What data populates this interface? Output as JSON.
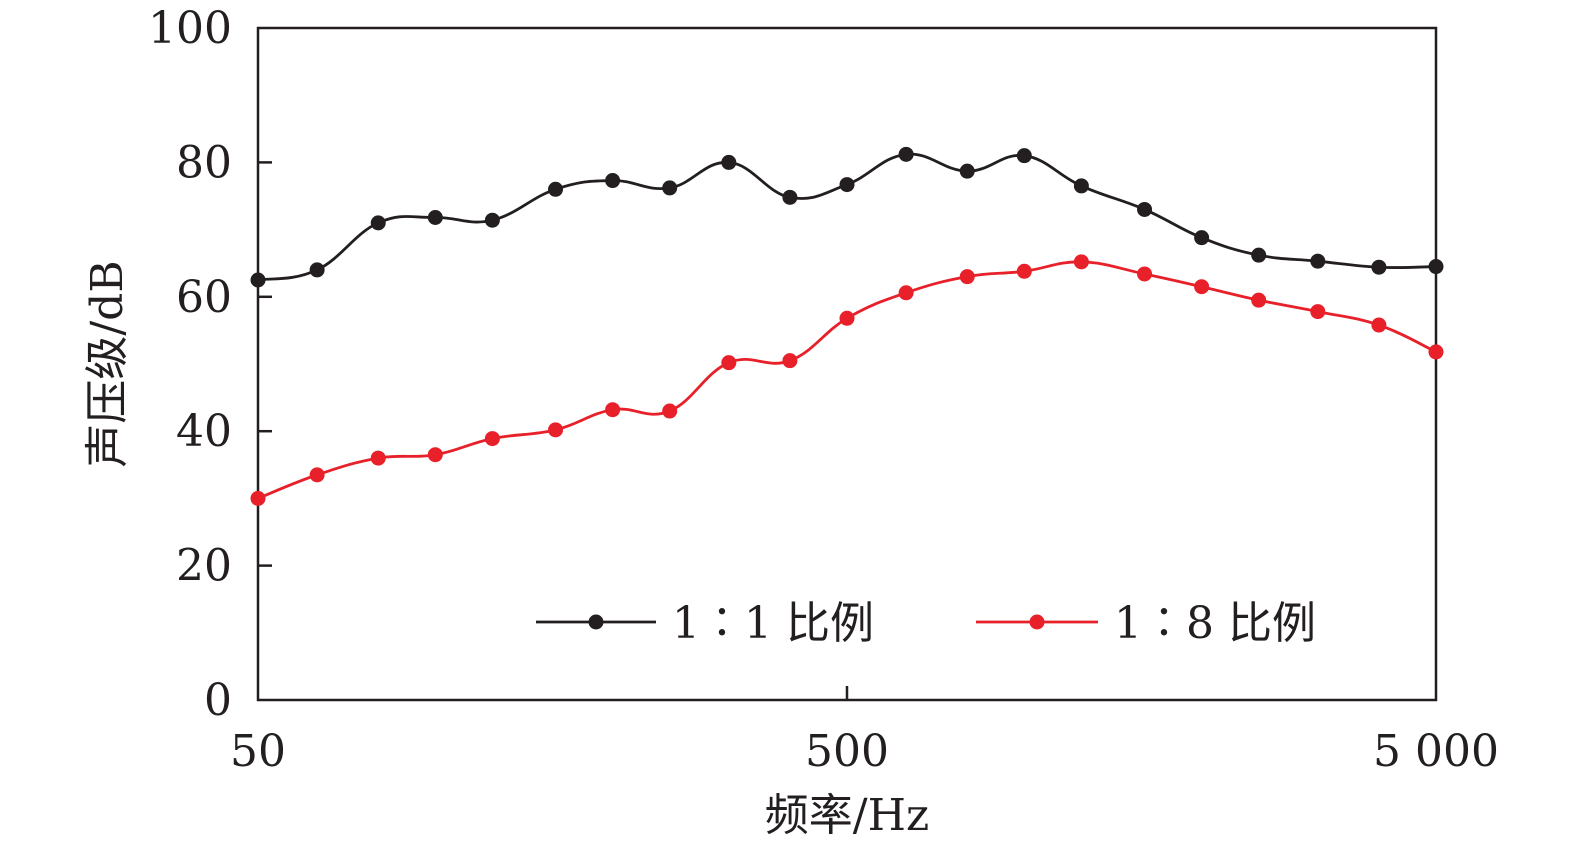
{
  "chart_data": {
    "type": "line",
    "xlabel": "频率/Hz",
    "ylabel": "声压级/dB",
    "xscale": "log",
    "xlim": [
      50,
      5000
    ],
    "ylim": [
      0,
      100
    ],
    "x_ticks": [
      50,
      500,
      5000
    ],
    "x_tick_labels": [
      "50",
      "500",
      "5 000"
    ],
    "y_ticks": [
      0,
      20,
      40,
      60,
      80,
      100
    ],
    "y_tick_labels": [
      "0",
      "20",
      "40",
      "60",
      "80",
      "100"
    ],
    "grid": false,
    "legend_position": "bottom-center",
    "x": [
      50,
      63,
      80,
      100,
      125,
      160,
      200,
      250,
      315,
      400,
      500,
      630,
      800,
      1000,
      1250,
      1600,
      2000,
      2500,
      3150,
      4000,
      5000
    ],
    "series": [
      {
        "name": "1∶1 比例",
        "color": "#231f20",
        "values": [
          62.5,
          64.0,
          71.0,
          71.8,
          71.4,
          76.0,
          77.3,
          76.2,
          80.0,
          74.8,
          76.7,
          81.2,
          78.7,
          81.0,
          76.5,
          73.0,
          68.8,
          66.2,
          65.3,
          64.4,
          64.5
        ]
      },
      {
        "name": "1∶8 比例",
        "color": "#e8202a",
        "values": [
          30.0,
          33.5,
          36.0,
          36.5,
          38.9,
          40.2,
          43.2,
          43.0,
          50.2,
          50.5,
          56.8,
          60.6,
          63.0,
          63.8,
          65.2,
          63.4,
          61.5,
          59.5,
          57.8,
          55.8,
          51.8
        ]
      }
    ]
  }
}
